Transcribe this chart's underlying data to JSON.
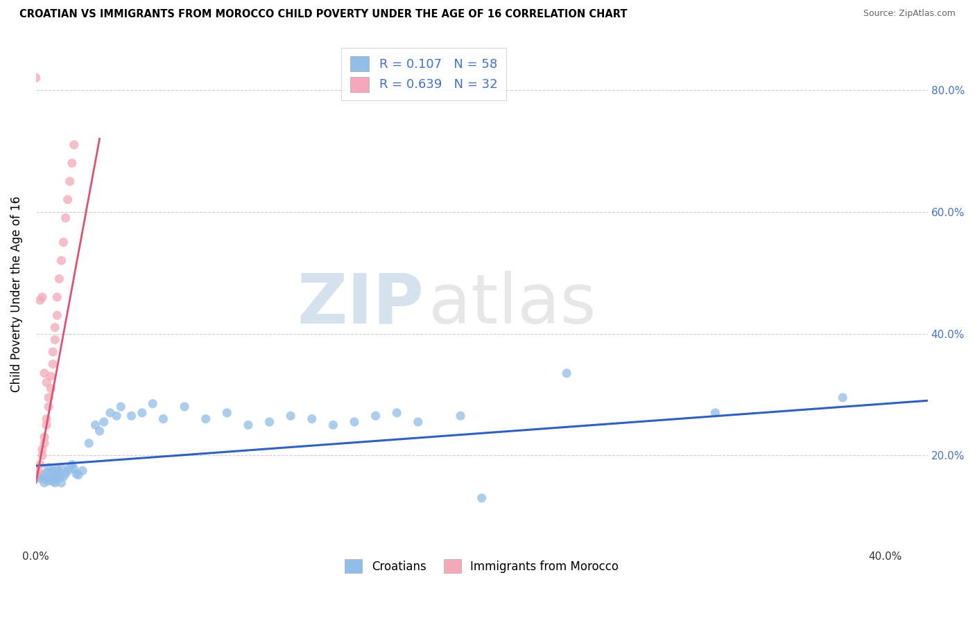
{
  "title": "CROATIAN VS IMMIGRANTS FROM MOROCCO CHILD POVERTY UNDER THE AGE OF 16 CORRELATION CHART",
  "source": "Source: ZipAtlas.com",
  "ylabel": "Child Poverty Under the Age of 16",
  "xlim": [
    0.0,
    0.42
  ],
  "ylim": [
    0.05,
    0.88
  ],
  "xtick_vals": [
    0.0,
    0.4
  ],
  "xtick_labels": [
    "0.0%",
    "40.0%"
  ],
  "ytick_vals": [
    0.2,
    0.4,
    0.6,
    0.8
  ],
  "ytick_labels": [
    "20.0%",
    "40.0%",
    "60.0%",
    "80.0%"
  ],
  "croatians_color": "#92bde8",
  "morocco_color": "#f4a8b8",
  "trendline_croatians_color": "#3060c0",
  "trendline_morocco_color": "#e05070",
  "R_croatians": 0.107,
  "N_croatians": 58,
  "R_morocco": 0.639,
  "N_morocco": 32,
  "watermark_zip": "ZIP",
  "watermark_atlas": "atlas",
  "bg_color": "#ffffff",
  "croatians_scatter": [
    [
      0.0,
      0.17
    ],
    [
      0.001,
      0.165
    ],
    [
      0.002,
      0.162
    ],
    [
      0.003,
      0.168
    ],
    [
      0.004,
      0.155
    ],
    [
      0.005,
      0.172
    ],
    [
      0.005,
      0.16
    ],
    [
      0.006,
      0.18
    ],
    [
      0.006,
      0.158
    ],
    [
      0.007,
      0.163
    ],
    [
      0.007,
      0.17
    ],
    [
      0.008,
      0.175
    ],
    [
      0.008,
      0.158
    ],
    [
      0.009,
      0.162
    ],
    [
      0.009,
      0.155
    ],
    [
      0.01,
      0.178
    ],
    [
      0.01,
      0.168
    ],
    [
      0.011,
      0.172
    ],
    [
      0.011,
      0.163
    ],
    [
      0.012,
      0.18
    ],
    [
      0.012,
      0.155
    ],
    [
      0.013,
      0.165
    ],
    [
      0.014,
      0.17
    ],
    [
      0.015,
      0.175
    ],
    [
      0.016,
      0.18
    ],
    [
      0.017,
      0.185
    ],
    [
      0.018,
      0.178
    ],
    [
      0.019,
      0.17
    ],
    [
      0.02,
      0.168
    ],
    [
      0.022,
      0.175
    ],
    [
      0.025,
      0.22
    ],
    [
      0.028,
      0.25
    ],
    [
      0.03,
      0.24
    ],
    [
      0.032,
      0.255
    ],
    [
      0.035,
      0.27
    ],
    [
      0.038,
      0.265
    ],
    [
      0.04,
      0.28
    ],
    [
      0.045,
      0.265
    ],
    [
      0.05,
      0.27
    ],
    [
      0.055,
      0.285
    ],
    [
      0.06,
      0.26
    ],
    [
      0.07,
      0.28
    ],
    [
      0.08,
      0.26
    ],
    [
      0.09,
      0.27
    ],
    [
      0.1,
      0.25
    ],
    [
      0.11,
      0.255
    ],
    [
      0.12,
      0.265
    ],
    [
      0.13,
      0.26
    ],
    [
      0.14,
      0.25
    ],
    [
      0.15,
      0.255
    ],
    [
      0.16,
      0.265
    ],
    [
      0.17,
      0.27
    ],
    [
      0.18,
      0.255
    ],
    [
      0.2,
      0.265
    ],
    [
      0.21,
      0.13
    ],
    [
      0.25,
      0.335
    ],
    [
      0.32,
      0.27
    ],
    [
      0.38,
      0.295
    ]
  ],
  "morocco_scatter": [
    [
      0.0,
      0.17
    ],
    [
      0.001,
      0.175
    ],
    [
      0.002,
      0.185
    ],
    [
      0.003,
      0.2
    ],
    [
      0.003,
      0.21
    ],
    [
      0.004,
      0.22
    ],
    [
      0.004,
      0.23
    ],
    [
      0.005,
      0.25
    ],
    [
      0.005,
      0.26
    ],
    [
      0.006,
      0.28
    ],
    [
      0.006,
      0.295
    ],
    [
      0.007,
      0.31
    ],
    [
      0.007,
      0.33
    ],
    [
      0.008,
      0.35
    ],
    [
      0.008,
      0.37
    ],
    [
      0.009,
      0.39
    ],
    [
      0.009,
      0.41
    ],
    [
      0.01,
      0.43
    ],
    [
      0.01,
      0.46
    ],
    [
      0.011,
      0.49
    ],
    [
      0.012,
      0.52
    ],
    [
      0.013,
      0.55
    ],
    [
      0.014,
      0.59
    ],
    [
      0.015,
      0.62
    ],
    [
      0.016,
      0.65
    ],
    [
      0.017,
      0.68
    ],
    [
      0.018,
      0.71
    ],
    [
      0.0,
      0.82
    ],
    [
      0.002,
      0.455
    ],
    [
      0.004,
      0.335
    ],
    [
      0.003,
      0.46
    ],
    [
      0.005,
      0.32
    ]
  ]
}
